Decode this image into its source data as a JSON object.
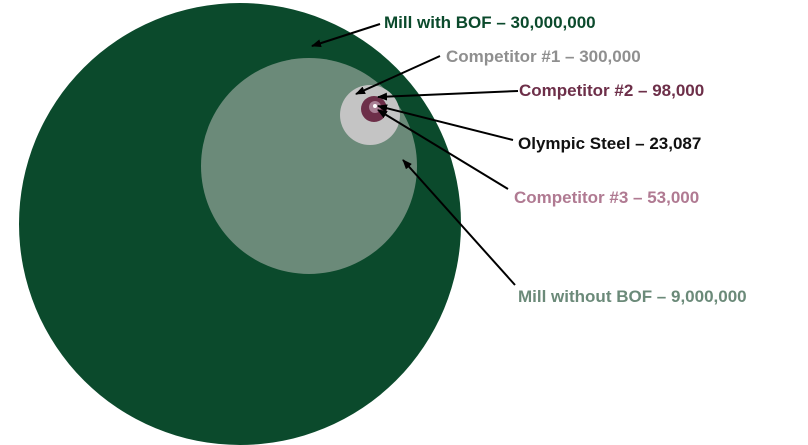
{
  "circles": [
    {
      "label": "Mill with BOF – 30,000,000",
      "color": "#0b4a2c"
    },
    {
      "label": "Mill without BOF – 9,000,000",
      "color": "#6b8a79"
    },
    {
      "label": "Competitor #1 – 300,000",
      "color": "#8f8f8f"
    },
    {
      "label": "Competitor #2 – 98,000",
      "color": "#6d2f49"
    },
    {
      "label": "Competitor #3 – 53,000",
      "color": "#b07a92"
    },
    {
      "label": "Olympic Steel – 23,087",
      "color": "#111111"
    }
  ],
  "fill_colors": {
    "mill_with_bof": "#0b4a2c",
    "mill_without_bof": "#6b8a79",
    "competitor_1": "#c4c4c4",
    "competitor_2": "#6d2f49",
    "competitor_3": "#a98095",
    "olympic_steel": "#ffffff"
  }
}
